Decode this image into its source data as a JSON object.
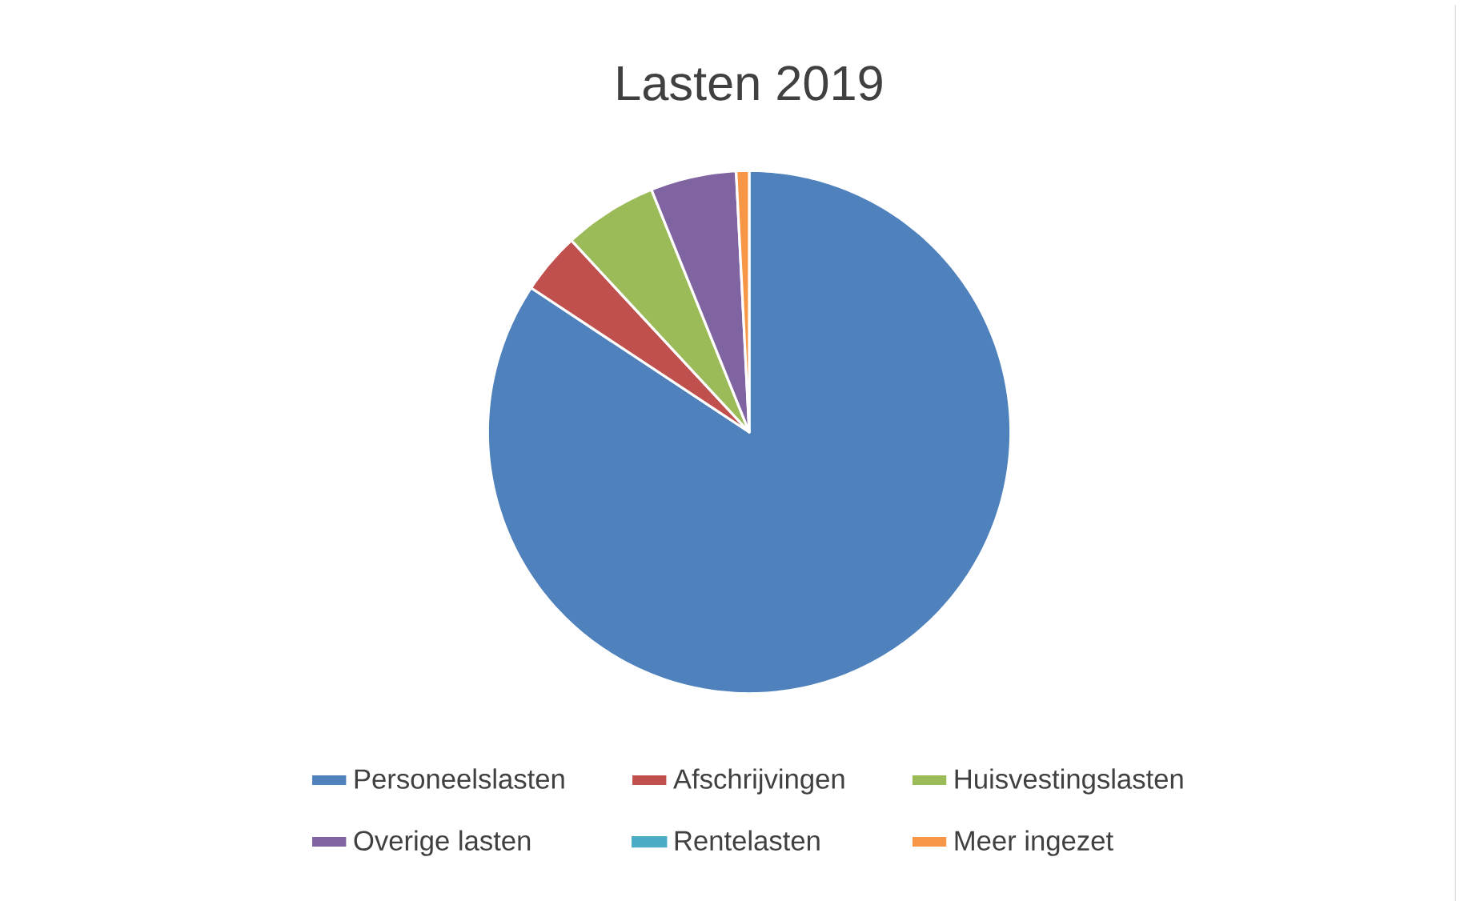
{
  "chart_data": {
    "type": "pie",
    "title": "Lasten 2019",
    "categories": [
      "Personeelslasten",
      "Afschrijvingen",
      "Huisvestingslasten",
      "Overige lasten",
      "Rentelasten",
      "Meer ingezet"
    ],
    "values": [
      84.3,
      3.8,
      5.8,
      5.3,
      null,
      0.8
    ],
    "colors": [
      "#4f81bd",
      "#c0504d",
      "#9bbb59",
      "#8064a2",
      "#4bacc6",
      "#f79646"
    ],
    "legend": "bottom"
  }
}
